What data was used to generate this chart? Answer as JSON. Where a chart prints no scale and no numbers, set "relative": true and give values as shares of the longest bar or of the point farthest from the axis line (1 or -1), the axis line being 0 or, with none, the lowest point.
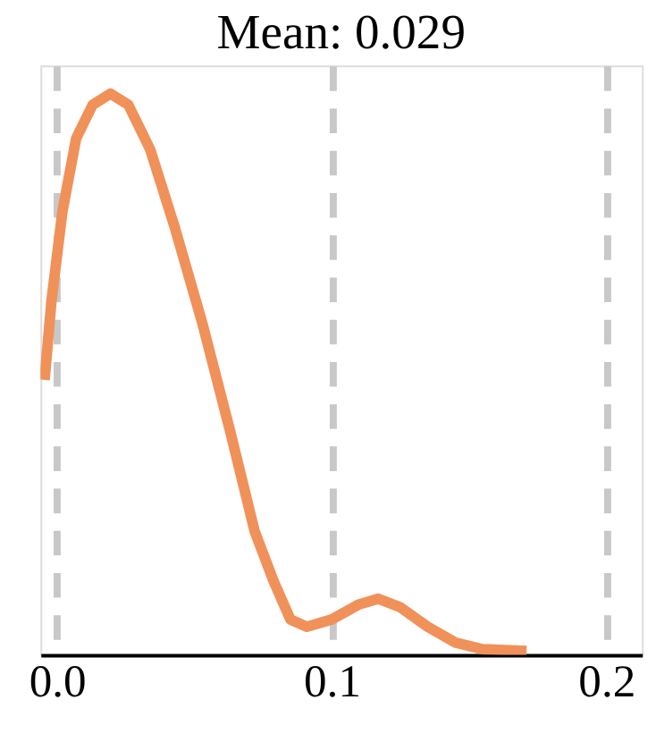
{
  "chart_data": {
    "type": "line",
    "title": "Mean: 0.029",
    "relative": true,
    "x": [
      -0.0045,
      -0.002,
      0.002,
      0.007,
      0.013,
      0.0195,
      0.026,
      0.034,
      0.043,
      0.053,
      0.063,
      0.072,
      0.079,
      0.085,
      0.091,
      0.1,
      0.11,
      0.117,
      0.125,
      0.135,
      0.145,
      0.155,
      0.171
    ],
    "series": [
      {
        "color": "#f0915a",
        "values": [
          0.49,
          0.63,
          0.79,
          0.92,
          0.98,
          1.0,
          0.98,
          0.9,
          0.76,
          0.59,
          0.4,
          0.22,
          0.13,
          0.063,
          0.05,
          0.063,
          0.09,
          0.1,
          0.085,
          0.05,
          0.022,
          0.01,
          0.007
        ]
      }
    ],
    "xlim": [
      -0.006,
      0.213
    ],
    "xticks": [
      {
        "value": 0,
        "label": "0.0"
      },
      0.1,
      {
        "value": 0.2,
        "label": "0.2"
      }
    ],
    "grid": "x",
    "line_style": "solid",
    "marker": "none",
    "legend": false
  }
}
